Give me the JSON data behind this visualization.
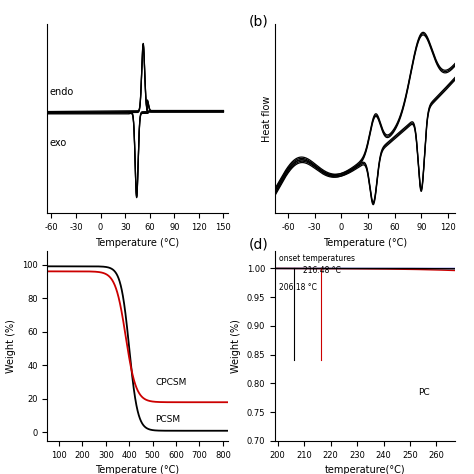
{
  "panel_b_label": "(b)",
  "panel_d_label": "(d)",
  "panel_a_xlabel": "Temperature (°C)",
  "panel_b_xlabel": "Temperature (°C)",
  "panel_c_xlabel": "Temperature (°C)",
  "panel_d_xlabel": "temperature(°C)",
  "panel_b_ylabel": "Heat flow",
  "panel_c_ylabel": "Weight (%)",
  "panel_a_endo_label": "endo",
  "panel_a_exo_label": "exo",
  "panel_c_cpcsm_label": "CPCSM",
  "panel_c_pcsm_label": "PCSM",
  "panel_d_onset_label": "onset temperatures",
  "panel_d_t1": "216.48 °C",
  "panel_d_t2": "206.18 °C",
  "panel_d_pc_label": "PC",
  "color_black": "#000000",
  "color_red": "#cc0000",
  "color_blue": "#3333cc",
  "bg_color": "#ffffff",
  "panel_a_xlim": [
    -65,
    155
  ],
  "panel_a_xticks": [
    -60,
    -30,
    0,
    30,
    60,
    90,
    120,
    150
  ],
  "panel_b_xlim": [
    -75,
    128
  ],
  "panel_b_xticks": [
    -60,
    -30,
    0,
    30,
    60,
    90,
    120
  ],
  "panel_c_xlim": [
    50,
    820
  ],
  "panel_c_xticks": [
    100,
    200,
    300,
    400,
    500,
    600,
    700,
    800
  ],
  "panel_c_ylim": [
    -5,
    108
  ],
  "panel_d_xlim": [
    199,
    267
  ],
  "panel_d_xticks": [
    200,
    210,
    220,
    230,
    240,
    250,
    260
  ]
}
